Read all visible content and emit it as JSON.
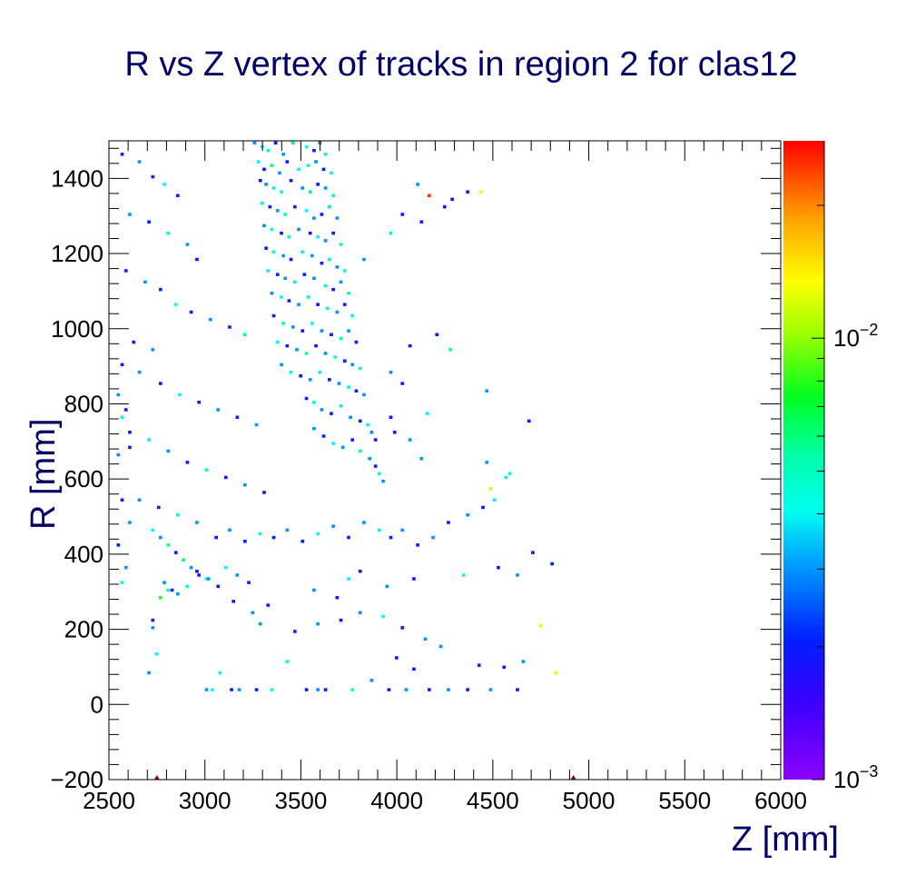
{
  "chart_data": {
    "type": "heatmap",
    "title": "R vs Z vertex of tracks in region 2 for clas12",
    "xlabel": "Z [mm]",
    "ylabel": "R [mm]",
    "xlim": [
      2500,
      6000
    ],
    "ylim": [
      -200,
      1500
    ],
    "x_major_ticks": [
      2500,
      3000,
      3500,
      4000,
      4500,
      5000,
      5500,
      6000
    ],
    "x_tick_labels": [
      "2500",
      "3000",
      "3500",
      "4000",
      "4500",
      "5000",
      "5500",
      "6000"
    ],
    "y_major_ticks": [
      -200,
      0,
      200,
      400,
      600,
      800,
      1000,
      1200,
      1400
    ],
    "y_tick_labels": [
      "−200",
      "0",
      "200",
      "400",
      "600",
      "800",
      "1000",
      "1200",
      "1400"
    ],
    "bin_width": [
      17.5,
      8.5
    ],
    "colorbar": {
      "scale": "log",
      "range": [
        0.001,
        0.028
      ],
      "tick_labels": [
        {
          "value": 0.001,
          "base": "10",
          "exp": "−3"
        },
        {
          "value": 0.01,
          "base": "10",
          "exp": "−2"
        }
      ]
    },
    "markers": [
      {
        "x": 2750,
        "y": -200,
        "color": "#8b0000"
      },
      {
        "x": 4920,
        "y": -200,
        "color": "#8b0000"
      }
    ],
    "bins": [
      [
        3250,
        1490,
        0.003
      ],
      [
        3290,
        1480,
        0.004
      ],
      [
        3320,
        1470,
        0.005
      ],
      [
        3360,
        1490,
        0.002
      ],
      [
        3400,
        1460,
        0.003
      ],
      [
        3450,
        1490,
        0.006
      ],
      [
        3520,
        1480,
        0.004
      ],
      [
        3560,
        1470,
        0.002
      ],
      [
        3590,
        1490,
        0.003
      ],
      [
        3620,
        1460,
        0.005
      ],
      [
        3270,
        1440,
        0.004
      ],
      [
        3300,
        1420,
        0.002
      ],
      [
        3340,
        1430,
        0.006
      ],
      [
        3380,
        1410,
        0.003
      ],
      [
        3420,
        1440,
        0.002
      ],
      [
        3480,
        1420,
        0.004
      ],
      [
        3530,
        1430,
        0.005
      ],
      [
        3570,
        1440,
        0.003
      ],
      [
        3610,
        1420,
        0.002
      ],
      [
        3650,
        1410,
        0.004
      ],
      [
        3280,
        1390,
        0.002
      ],
      [
        3310,
        1380,
        0.003
      ],
      [
        3350,
        1370,
        0.005
      ],
      [
        3390,
        1360,
        0.004
      ],
      [
        3440,
        1390,
        0.002
      ],
      [
        3500,
        1370,
        0.003
      ],
      [
        3540,
        1360,
        0.006
      ],
      [
        3580,
        1380,
        0.002
      ],
      [
        3620,
        1370,
        0.003
      ],
      [
        3660,
        1350,
        0.005
      ],
      [
        3290,
        1330,
        0.004
      ],
      [
        3330,
        1320,
        0.002
      ],
      [
        3370,
        1310,
        0.003
      ],
      [
        3410,
        1300,
        0.005
      ],
      [
        3460,
        1320,
        0.002
      ],
      [
        3520,
        1310,
        0.004
      ],
      [
        3560,
        1290,
        0.003
      ],
      [
        3600,
        1300,
        0.002
      ],
      [
        3640,
        1320,
        0.006
      ],
      [
        3680,
        1290,
        0.003
      ],
      [
        3300,
        1270,
        0.003
      ],
      [
        3340,
        1260,
        0.004
      ],
      [
        3390,
        1250,
        0.002
      ],
      [
        3430,
        1240,
        0.005
      ],
      [
        3480,
        1260,
        0.003
      ],
      [
        3540,
        1250,
        0.002
      ],
      [
        3580,
        1240,
        0.004
      ],
      [
        3620,
        1230,
        0.003
      ],
      [
        3660,
        1250,
        0.002
      ],
      [
        3700,
        1220,
        0.005
      ],
      [
        3310,
        1210,
        0.002
      ],
      [
        3350,
        1200,
        0.005
      ],
      [
        3400,
        1190,
        0.003
      ],
      [
        3440,
        1180,
        0.002
      ],
      [
        3500,
        1200,
        0.004
      ],
      [
        3550,
        1190,
        0.003
      ],
      [
        3600,
        1170,
        0.002
      ],
      [
        3640,
        1180,
        0.005
      ],
      [
        3680,
        1160,
        0.003
      ],
      [
        3720,
        1150,
        0.004
      ],
      [
        3320,
        1150,
        0.004
      ],
      [
        3370,
        1140,
        0.002
      ],
      [
        3410,
        1130,
        0.003
      ],
      [
        3460,
        1120,
        0.005
      ],
      [
        3510,
        1140,
        0.002
      ],
      [
        3560,
        1130,
        0.003
      ],
      [
        3620,
        1110,
        0.004
      ],
      [
        3660,
        1100,
        0.002
      ],
      [
        3700,
        1120,
        0.003
      ],
      [
        3740,
        1090,
        0.005
      ],
      [
        3340,
        1090,
        0.003
      ],
      [
        3390,
        1080,
        0.004
      ],
      [
        3430,
        1070,
        0.002
      ],
      [
        3480,
        1060,
        0.003
      ],
      [
        3530,
        1080,
        0.005
      ],
      [
        3580,
        1060,
        0.002
      ],
      [
        3630,
        1050,
        0.004
      ],
      [
        3680,
        1040,
        0.003
      ],
      [
        3720,
        1060,
        0.002
      ],
      [
        3760,
        1030,
        0.004
      ],
      [
        3350,
        1030,
        0.002
      ],
      [
        3400,
        1010,
        0.005
      ],
      [
        3450,
        1000,
        0.003
      ],
      [
        3500,
        990,
        0.002
      ],
      [
        3550,
        1010,
        0.004
      ],
      [
        3600,
        990,
        0.003
      ],
      [
        3650,
        980,
        0.002
      ],
      [
        3700,
        970,
        0.005
      ],
      [
        3740,
        990,
        0.003
      ],
      [
        3780,
        960,
        0.002
      ],
      [
        3370,
        960,
        0.004
      ],
      [
        3420,
        950,
        0.002
      ],
      [
        3470,
        940,
        0.003
      ],
      [
        3520,
        930,
        0.005
      ],
      [
        3570,
        950,
        0.002
      ],
      [
        3620,
        930,
        0.003
      ],
      [
        3670,
        920,
        0.004
      ],
      [
        3720,
        910,
        0.002
      ],
      [
        3760,
        900,
        0.003
      ],
      [
        3800,
        890,
        0.004
      ],
      [
        3390,
        900,
        0.003
      ],
      [
        3440,
        880,
        0.004
      ],
      [
        3490,
        870,
        0.002
      ],
      [
        3540,
        860,
        0.003
      ],
      [
        3590,
        880,
        0.005
      ],
      [
        3640,
        860,
        0.002
      ],
      [
        3690,
        850,
        0.003
      ],
      [
        3740,
        840,
        0.004
      ],
      [
        3780,
        830,
        0.002
      ],
      [
        3820,
        820,
        0.003
      ],
      [
        3520,
        810,
        0.002
      ],
      [
        3560,
        800,
        0.004
      ],
      [
        3600,
        780,
        0.003
      ],
      [
        3650,
        770,
        0.002
      ],
      [
        3700,
        790,
        0.005
      ],
      [
        3750,
        760,
        0.003
      ],
      [
        3800,
        750,
        0.002
      ],
      [
        3840,
        740,
        0.004
      ],
      [
        3860,
        720,
        0.003
      ],
      [
        3880,
        700,
        0.002
      ],
      [
        3560,
        730,
        0.003
      ],
      [
        3610,
        710,
        0.002
      ],
      [
        3660,
        690,
        0.004
      ],
      [
        3710,
        680,
        0.003
      ],
      [
        3760,
        700,
        0.002
      ],
      [
        3800,
        670,
        0.005
      ],
      [
        3850,
        650,
        0.003
      ],
      [
        3880,
        630,
        0.002
      ],
      [
        3900,
        610,
        0.004
      ],
      [
        3920,
        590,
        0.003
      ],
      [
        2560,
        1460,
        0.002
      ],
      [
        2650,
        1440,
        0.003
      ],
      [
        2720,
        1400,
        0.002
      ],
      [
        2780,
        1380,
        0.004
      ],
      [
        2850,
        1350,
        0.002
      ],
      [
        2600,
        1300,
        0.003
      ],
      [
        2700,
        1280,
        0.002
      ],
      [
        2800,
        1250,
        0.005
      ],
      [
        2900,
        1220,
        0.003
      ],
      [
        2950,
        1180,
        0.002
      ],
      [
        2580,
        1150,
        0.002
      ],
      [
        2680,
        1120,
        0.003
      ],
      [
        2760,
        1100,
        0.002
      ],
      [
        2840,
        1060,
        0.004
      ],
      [
        2920,
        1040,
        0.002
      ],
      [
        3020,
        1020,
        0.003
      ],
      [
        3120,
        1000,
        0.002
      ],
      [
        3200,
        980,
        0.005
      ],
      [
        2620,
        960,
        0.002
      ],
      [
        2720,
        940,
        0.003
      ],
      [
        2560,
        900,
        0.002
      ],
      [
        2650,
        880,
        0.003
      ],
      [
        2760,
        850,
        0.002
      ],
      [
        2860,
        820,
        0.004
      ],
      [
        2960,
        800,
        0.002
      ],
      [
        3060,
        780,
        0.003
      ],
      [
        3160,
        760,
        0.002
      ],
      [
        3260,
        740,
        0.003
      ],
      [
        2600,
        720,
        0.002
      ],
      [
        2700,
        700,
        0.004
      ],
      [
        2800,
        670,
        0.003
      ],
      [
        2900,
        640,
        0.002
      ],
      [
        3000,
        620,
        0.005
      ],
      [
        3100,
        600,
        0.002
      ],
      [
        3200,
        580,
        0.003
      ],
      [
        3300,
        560,
        0.002
      ],
      [
        2650,
        540,
        0.003
      ],
      [
        2750,
        520,
        0.002
      ],
      [
        2850,
        500,
        0.004
      ],
      [
        2950,
        480,
        0.003
      ],
      [
        2720,
        460,
        0.004
      ],
      [
        2760,
        440,
        0.003
      ],
      [
        2800,
        420,
        0.005
      ],
      [
        2840,
        400,
        0.002
      ],
      [
        2880,
        380,
        0.006
      ],
      [
        2920,
        360,
        0.003
      ],
      [
        2960,
        340,
        0.002
      ],
      [
        3000,
        330,
        0.004
      ],
      [
        2780,
        320,
        0.003
      ],
      [
        2820,
        300,
        0.002
      ],
      [
        2760,
        280,
        0.008
      ],
      [
        2800,
        300,
        0.005
      ],
      [
        2850,
        290,
        0.003
      ],
      [
        2900,
        310,
        0.004
      ],
      [
        2950,
        350,
        0.002
      ],
      [
        3010,
        330,
        0.003
      ],
      [
        3060,
        310,
        0.002
      ],
      [
        3100,
        360,
        0.004
      ],
      [
        3160,
        340,
        0.003
      ],
      [
        3220,
        320,
        0.002
      ],
      [
        3050,
        440,
        0.002
      ],
      [
        3120,
        460,
        0.003
      ],
      [
        3200,
        430,
        0.002
      ],
      [
        3280,
        450,
        0.004
      ],
      [
        3350,
        440,
        0.002
      ],
      [
        3420,
        460,
        0.003
      ],
      [
        3500,
        430,
        0.002
      ],
      [
        3580,
        450,
        0.004
      ],
      [
        3660,
        470,
        0.003
      ],
      [
        3740,
        440,
        0.002
      ],
      [
        3820,
        480,
        0.003
      ],
      [
        3900,
        460,
        0.004
      ],
      [
        3960,
        440,
        0.002
      ],
      [
        4020,
        460,
        0.003
      ],
      [
        4100,
        420,
        0.002
      ],
      [
        4180,
        440,
        0.003
      ],
      [
        4260,
        480,
        0.002
      ],
      [
        4360,
        500,
        0.003
      ],
      [
        4440,
        520,
        0.002
      ],
      [
        4500,
        540,
        0.004
      ],
      [
        4560,
        600,
        0.005
      ],
      [
        4480,
        570,
        0.012
      ],
      [
        4460,
        640,
        0.003
      ],
      [
        4520,
        360,
        0.002
      ],
      [
        4620,
        340,
        0.003
      ],
      [
        4700,
        400,
        0.002
      ],
      [
        4800,
        370,
        0.002
      ],
      [
        4680,
        750,
        0.002
      ],
      [
        4460,
        830,
        0.003
      ],
      [
        4580,
        610,
        0.004
      ],
      [
        4160,
        1350,
        0.025
      ],
      [
        4430,
        1360,
        0.014
      ],
      [
        4360,
        1360,
        0.002
      ],
      [
        4280,
        1340,
        0.002
      ],
      [
        4100,
        1380,
        0.003
      ],
      [
        4020,
        1300,
        0.002
      ],
      [
        3960,
        1250,
        0.005
      ],
      [
        4120,
        1280,
        0.002
      ],
      [
        4240,
        1320,
        0.002
      ],
      [
        3820,
        1180,
        0.003
      ],
      [
        4200,
        980,
        0.002
      ],
      [
        4270,
        940,
        0.005
      ],
      [
        4060,
        950,
        0.002
      ],
      [
        3960,
        880,
        0.003
      ],
      [
        4020,
        850,
        0.002
      ],
      [
        4150,
        770,
        0.004
      ],
      [
        3960,
        760,
        0.002
      ],
      [
        4060,
        700,
        0.003
      ],
      [
        3980,
        720,
        0.002
      ],
      [
        4120,
        650,
        0.003
      ],
      [
        4740,
        205,
        0.014
      ],
      [
        4820,
        80,
        0.012
      ],
      [
        4650,
        110,
        0.003
      ],
      [
        4550,
        95,
        0.002
      ],
      [
        4420,
        100,
        0.002
      ],
      [
        4220,
        150,
        0.003
      ],
      [
        4080,
        90,
        0.002
      ],
      [
        3990,
        120,
        0.002
      ],
      [
        4260,
        35,
        0.003
      ],
      [
        4360,
        35,
        0.002
      ],
      [
        3000,
        35,
        0.003
      ],
      [
        3030,
        35,
        0.004
      ],
      [
        3130,
        35,
        0.002
      ],
      [
        3170,
        35,
        0.003
      ],
      [
        3260,
        35,
        0.002
      ],
      [
        3340,
        35,
        0.004
      ],
      [
        3520,
        35,
        0.002
      ],
      [
        3580,
        35,
        0.003
      ],
      [
        3620,
        35,
        0.002
      ],
      [
        3760,
        35,
        0.004
      ],
      [
        3950,
        35,
        0.002
      ],
      [
        4040,
        35,
        0.003
      ],
      [
        4160,
        35,
        0.002
      ],
      [
        4480,
        35,
        0.003
      ],
      [
        4620,
        35,
        0.002
      ],
      [
        2720,
        200,
        0.003
      ],
      [
        2720,
        220,
        0.002
      ],
      [
        2740,
        130,
        0.004
      ],
      [
        2700,
        80,
        0.003
      ],
      [
        3070,
        80,
        0.004
      ],
      [
        3280,
        210,
        0.003
      ],
      [
        3460,
        190,
        0.002
      ],
      [
        3580,
        210,
        0.003
      ],
      [
        3700,
        220,
        0.002
      ],
      [
        3800,
        240,
        0.003
      ],
      [
        3920,
        230,
        0.004
      ],
      [
        4020,
        200,
        0.002
      ],
      [
        4140,
        170,
        0.003
      ],
      [
        3860,
        60,
        0.003
      ],
      [
        3420,
        110,
        0.004
      ],
      [
        3140,
        270,
        0.002
      ],
      [
        3240,
        240,
        0.003
      ],
      [
        3320,
        260,
        0.002
      ],
      [
        3560,
        300,
        0.003
      ],
      [
        3680,
        280,
        0.002
      ],
      [
        3740,
        330,
        0.004
      ],
      [
        3800,
        350,
        0.002
      ],
      [
        3940,
        310,
        0.003
      ],
      [
        4080,
        330,
        0.002
      ],
      [
        4340,
        340,
        0.004
      ],
      [
        2540,
        820,
        0.003
      ],
      [
        2580,
        780,
        0.002
      ],
      [
        2560,
        760,
        0.004
      ],
      [
        2600,
        680,
        0.002
      ],
      [
        2540,
        660,
        0.003
      ],
      [
        2560,
        540,
        0.002
      ],
      [
        2600,
        480,
        0.003
      ],
      [
        2540,
        420,
        0.002
      ],
      [
        2580,
        360,
        0.003
      ],
      [
        2560,
        320,
        0.004
      ]
    ]
  }
}
